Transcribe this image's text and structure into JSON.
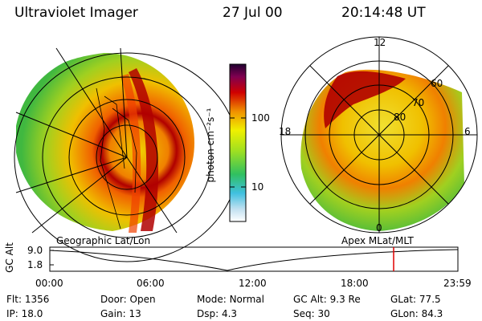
{
  "header": {
    "instrument": "Ultraviolet Imager",
    "date": "27 Jul 00",
    "time": "20:14:48 UT"
  },
  "colorbar": {
    "label": "photon cm⁻²s⁻¹",
    "ticks": [
      "100",
      "10"
    ]
  },
  "left_panel": {
    "caption": "Geographic Lat/Lon"
  },
  "right_panel": {
    "caption": "Apex MLat/MLT",
    "mlt_labels": [
      "12",
      "18",
      "6",
      "0"
    ],
    "lat_labels": [
      "60",
      "70",
      "80"
    ]
  },
  "timeline": {
    "ylabel": "GC Alt",
    "y_ticks": [
      "9.0",
      "1.8"
    ],
    "x_ticks": [
      "00:00",
      "06:00",
      "12:00",
      "18:00",
      "23:59"
    ],
    "marker_time": "20:14:48"
  },
  "info": {
    "row1": [
      {
        "label": "Flt:",
        "value": "1356"
      },
      {
        "label": "Door:",
        "value": "Open"
      },
      {
        "label": "Mode:",
        "value": "Normal"
      },
      {
        "label": "GC Alt:",
        "value": "9.3 Re"
      },
      {
        "label": "GLat:",
        "value": "77.5"
      }
    ],
    "row2": [
      {
        "label": "IP:",
        "value": "18.0"
      },
      {
        "label": "Gain:",
        "value": "13"
      },
      {
        "label": "Dsp:",
        "value": "4.3"
      },
      {
        "label": "Seq:",
        "value": "30"
      },
      {
        "label": "GLon:",
        "value": "84.3"
      }
    ]
  },
  "colors": {
    "aurora_peak": "#b00000",
    "aurora_mid": "#f06000",
    "aurora_low": "#f0c000",
    "background_green": "#40c040",
    "marker": "#e00000"
  }
}
